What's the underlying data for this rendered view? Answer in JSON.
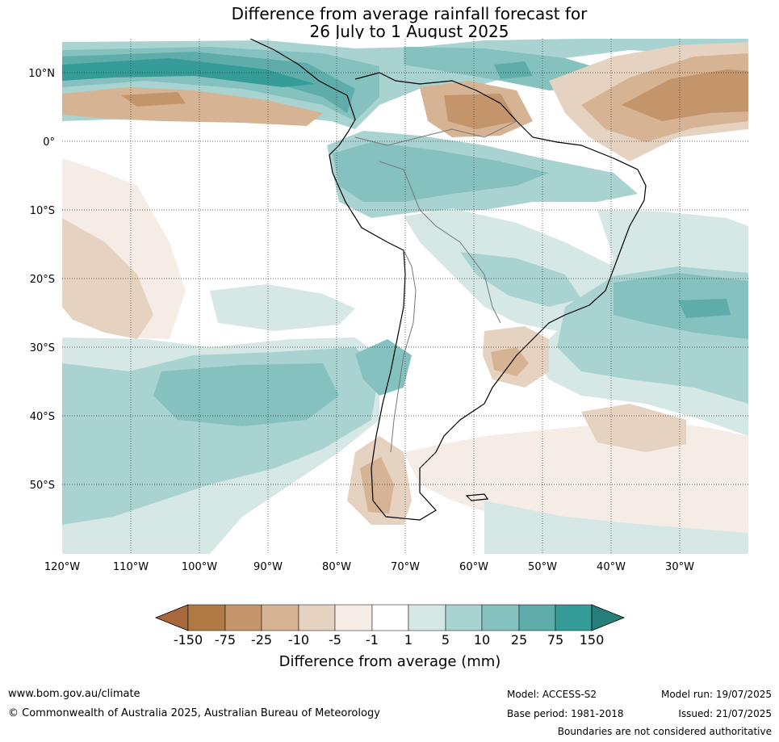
{
  "title": {
    "line1": "Difference from average rainfall forecast for",
    "line2": "26 July to 1 August 2025"
  },
  "axes": {
    "lon_labels": [
      "120°W",
      "110°W",
      "100°W",
      "90°W",
      "80°W",
      "70°W",
      "60°W",
      "50°W",
      "40°W",
      "30°W"
    ],
    "lat_labels": [
      "10°N",
      "0°",
      "10°S",
      "20°S",
      "30°S",
      "40°S",
      "50°S"
    ],
    "lon_range": [
      -120,
      -20
    ],
    "lat_range": [
      -60,
      15
    ],
    "gridlines": "dotted"
  },
  "colorbar": {
    "title": "Difference from average (mm)",
    "tick_labels": [
      "-150",
      "-75",
      "-25",
      "-10",
      "-5",
      "-1",
      "1",
      "5",
      "10",
      "25",
      "75",
      "150"
    ],
    "colors": [
      "#a8683b",
      "#b07a44",
      "#c4956a",
      "#d5b393",
      "#e6d2c0",
      "#f5ece6",
      "#ffffff",
      "#d5e8e6",
      "#a9d3d1",
      "#84c1bf",
      "#5eadab",
      "#359c98",
      "#257e7a"
    ],
    "extend": "both"
  },
  "footer": {
    "url": "www.bom.gov.au/climate",
    "copyright": "© Commonwealth of Australia 2025, Australian Bureau of Meteorology",
    "model": "Model: ACCESS-S2",
    "base_period": "Base period: 1981-2018",
    "model_run": "Model run: 19/07/2025",
    "issued": "Issued: 21/07/2025",
    "disclaimer": "Boundaries are not considered authoritative"
  }
}
